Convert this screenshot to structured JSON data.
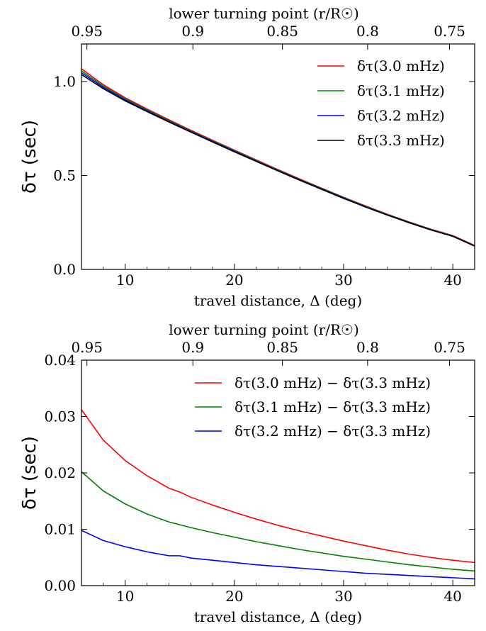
{
  "chart_data": [
    {
      "type": "line",
      "title": "",
      "xlabel": "travel distance, Δ (deg)",
      "ylabel": "δτ (sec)",
      "top_xlabel": "lower turning point (r/R☉)",
      "xlim": [
        6,
        42
      ],
      "ylim": [
        0,
        1.2
      ],
      "xticks": [
        10,
        20,
        30,
        40
      ],
      "yticks": [
        0.0,
        0.5,
        1.0
      ],
      "ytick_labels": [
        "0.0",
        "0.5",
        "1.0"
      ],
      "top_ticks": [
        {
          "x": 6.5,
          "label": "0.95"
        },
        {
          "x": 16.2,
          "label": "0.9"
        },
        {
          "x": 24.4,
          "label": "0.85"
        },
        {
          "x": 32.2,
          "label": "0.8"
        },
        {
          "x": 39.7,
          "label": "0.75"
        }
      ],
      "legend_position": "top-right",
      "x": [
        6,
        8,
        10,
        12,
        14,
        16,
        18,
        20,
        22,
        24,
        26,
        28,
        30,
        32,
        34,
        36,
        38,
        40,
        42
      ],
      "series": [
        {
          "name": "δτ(3.0 mHz)",
          "color": "#ff0000",
          "values": [
            1.068,
            0.983,
            0.914,
            0.854,
            0.797,
            0.741,
            0.688,
            0.635,
            0.583,
            0.531,
            0.481,
            0.432,
            0.384,
            0.338,
            0.294,
            0.253,
            0.214,
            0.18,
            0.128
          ]
        },
        {
          "name": "δτ(3.1 mHz)",
          "color": "#008000",
          "values": [
            1.057,
            0.976,
            0.908,
            0.849,
            0.792,
            0.737,
            0.684,
            0.632,
            0.58,
            0.528,
            0.478,
            0.43,
            0.382,
            0.336,
            0.292,
            0.251,
            0.212,
            0.178,
            0.126
          ]
        },
        {
          "name": "δτ(3.2 mHz)",
          "color": "#0000ff",
          "values": [
            1.047,
            0.969,
            0.902,
            0.844,
            0.788,
            0.734,
            0.681,
            0.629,
            0.577,
            0.526,
            0.476,
            0.428,
            0.38,
            0.334,
            0.29,
            0.249,
            0.211,
            0.177,
            0.125
          ]
        },
        {
          "name": "δτ(3.3 mHz)",
          "color": "#000000",
          "values": [
            1.037,
            0.962,
            0.897,
            0.84,
            0.785,
            0.731,
            0.678,
            0.626,
            0.575,
            0.524,
            0.474,
            0.426,
            0.378,
            0.332,
            0.289,
            0.248,
            0.21,
            0.176,
            0.124
          ]
        }
      ]
    },
    {
      "type": "line",
      "title": "",
      "xlabel": "travel distance, Δ (deg)",
      "ylabel": "δτ (sec)",
      "top_xlabel": "lower turning point (r/R☉)",
      "xlim": [
        6,
        42
      ],
      "ylim": [
        0,
        0.04
      ],
      "xticks": [
        10,
        20,
        30,
        40
      ],
      "yticks": [
        0.0,
        0.01,
        0.02,
        0.03,
        0.04
      ],
      "ytick_labels": [
        "0.00",
        "0.01",
        "0.02",
        "0.03",
        "0.04"
      ],
      "top_ticks": [
        {
          "x": 6.5,
          "label": "0.95"
        },
        {
          "x": 16.2,
          "label": "0.9"
        },
        {
          "x": 24.4,
          "label": "0.85"
        },
        {
          "x": 32.2,
          "label": "0.8"
        },
        {
          "x": 39.7,
          "label": "0.75"
        }
      ],
      "legend_position": "top-right",
      "x": [
        6,
        8,
        10,
        12,
        14,
        15,
        16,
        18,
        20,
        22,
        24,
        26,
        28,
        30,
        32,
        34,
        36,
        38,
        40,
        42
      ],
      "series": [
        {
          "name": "δτ(3.0 mHz) − δτ(3.3 mHz)",
          "color": "#ff0000",
          "values": [
            0.0312,
            0.0258,
            0.0222,
            0.0195,
            0.0173,
            0.0166,
            0.0157,
            0.0143,
            0.013,
            0.0118,
            0.0107,
            0.0097,
            0.0088,
            0.0079,
            0.0071,
            0.0063,
            0.0056,
            0.005,
            0.0045,
            0.0041
          ]
        },
        {
          "name": "δτ(3.1 mHz) − δτ(3.3 mHz)",
          "color": "#008000",
          "values": [
            0.0202,
            0.0168,
            0.0145,
            0.0127,
            0.0113,
            0.0108,
            0.0103,
            0.0094,
            0.0086,
            0.0078,
            0.0071,
            0.0064,
            0.0058,
            0.0052,
            0.0047,
            0.0042,
            0.0037,
            0.0033,
            0.0029,
            0.0026
          ]
        },
        {
          "name": "δτ(3.2 mHz) − δτ(3.3 mHz)",
          "color": "#0000ff",
          "values": [
            0.0098,
            0.008,
            0.0069,
            0.006,
            0.0053,
            0.0053,
            0.0049,
            0.0045,
            0.0041,
            0.0037,
            0.0034,
            0.0031,
            0.0028,
            0.0025,
            0.0022,
            0.002,
            0.0018,
            0.0016,
            0.0014,
            0.0012
          ]
        }
      ]
    }
  ]
}
